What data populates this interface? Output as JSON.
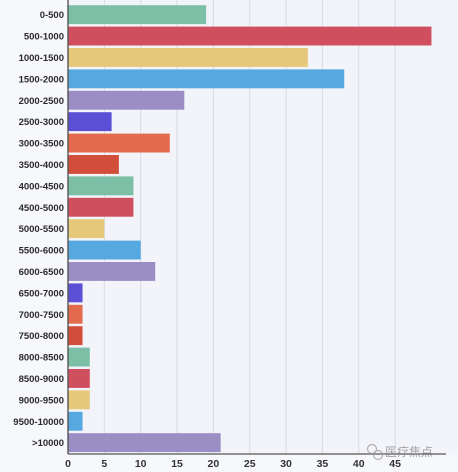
{
  "chart_data": {
    "type": "bar",
    "orientation": "horizontal",
    "title": "",
    "xlabel": "",
    "ylabel": "",
    "categories": [
      "0-500",
      "500-1000",
      "1000-1500",
      "1500-2000",
      "2000-2500",
      "2500-3000",
      "3000-3500",
      "3500-4000",
      "4000-4500",
      "4500-5000",
      "5000-5500",
      "5500-6000",
      "6000-6500",
      "6500-7000",
      "7000-7500",
      "7500-8000",
      "8000-8500",
      "8500-9000",
      "9000-9500",
      "9500-10000",
      ">10000"
    ],
    "values": [
      19,
      50,
      33,
      38,
      16,
      6,
      14,
      7,
      9,
      9,
      5,
      10,
      12,
      2,
      2,
      2,
      3,
      3,
      3,
      2,
      21
    ],
    "colors": [
      "#7dbfa6",
      "#cf4f5e",
      "#e5c87a",
      "#55a8e0",
      "#9b8ec4",
      "#5b4fd6",
      "#e36a4c",
      "#d24d3a",
      "#7dbfa6",
      "#cf4f5e",
      "#e5c87a",
      "#55a8e0",
      "#9b8ec4",
      "#5b4fd6",
      "#e36a4c",
      "#d24d3a",
      "#7dbfa6",
      "#cf4f5e",
      "#e5c87a",
      "#55a8e0",
      "#9b8ec4"
    ],
    "xlim": [
      0,
      52
    ],
    "xticks": [
      0,
      5,
      10,
      15,
      20,
      25,
      30,
      35,
      40,
      45
    ],
    "grid": true,
    "legend": "none"
  },
  "watermark": {
    "text": "医疗焦点"
  }
}
